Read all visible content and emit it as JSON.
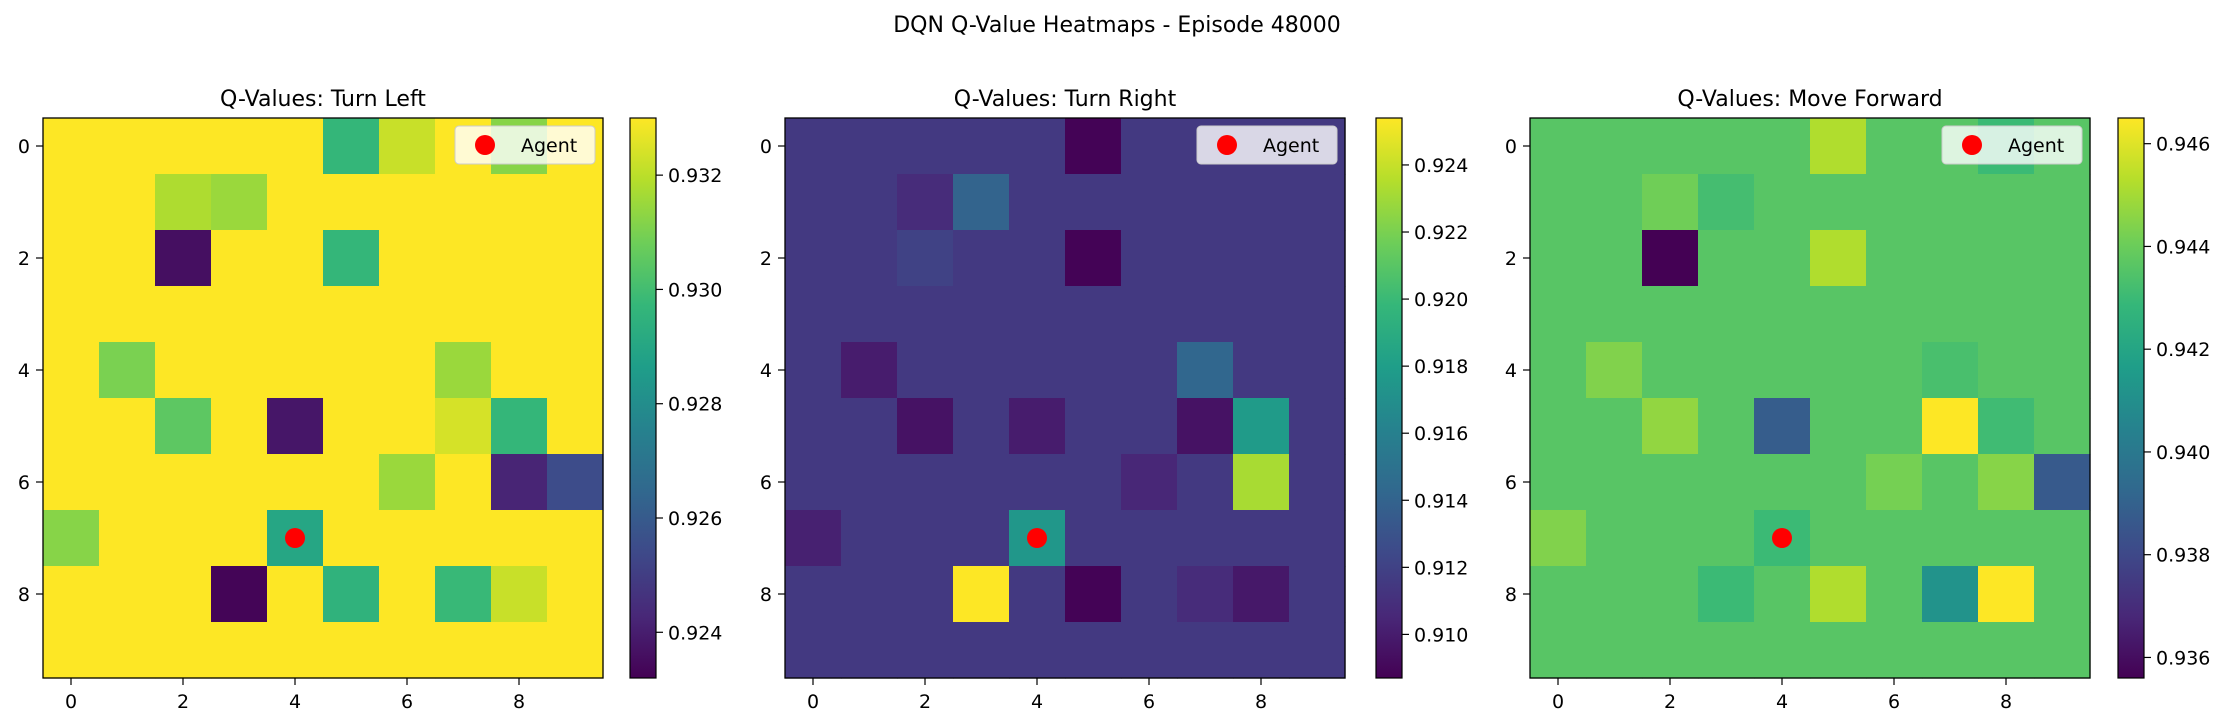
{
  "figure": {
    "suptitle": "DQN Q-Value Heatmaps - Episode 48000"
  },
  "colormap": {
    "name": "viridis",
    "stops": [
      "#440154",
      "#482878",
      "#3e4989",
      "#31688e",
      "#26828e",
      "#1f9e89",
      "#35b779",
      "#6ece58",
      "#b5de2b",
      "#fde725"
    ]
  },
  "agent": {
    "row": 7,
    "col": 4,
    "color": "#ff0000",
    "legend_label": "Agent"
  },
  "chart_data": [
    {
      "type": "heatmap",
      "title": "Q-Values: Turn Left",
      "x_ticks": [
        0,
        2,
        4,
        6,
        8
      ],
      "y_ticks": [
        0,
        2,
        4,
        6,
        8
      ],
      "vmin": 0.9232,
      "vmax": 0.933,
      "colorbar_ticks": [
        0.924,
        0.926,
        0.928,
        0.93,
        0.932
      ],
      "legend_position": "upper right",
      "values": [
        [
          0.933,
          0.933,
          0.933,
          0.933,
          0.933,
          0.9297,
          0.9322,
          0.933,
          0.9312,
          0.933
        ],
        [
          0.933,
          0.933,
          0.9318,
          0.9315,
          0.933,
          0.933,
          0.933,
          0.933,
          0.933,
          0.933
        ],
        [
          0.933,
          0.933,
          0.9236,
          0.933,
          0.933,
          0.9297,
          0.933,
          0.933,
          0.933,
          0.933
        ],
        [
          0.933,
          0.933,
          0.933,
          0.933,
          0.933,
          0.933,
          0.933,
          0.933,
          0.933,
          0.933
        ],
        [
          0.933,
          0.931,
          0.933,
          0.933,
          0.933,
          0.933,
          0.933,
          0.9315,
          0.933,
          0.933
        ],
        [
          0.933,
          0.933,
          0.9305,
          0.933,
          0.9238,
          0.933,
          0.933,
          0.9324,
          0.9297,
          0.933
        ],
        [
          0.933,
          0.933,
          0.933,
          0.933,
          0.933,
          0.933,
          0.9315,
          0.933,
          0.9242,
          0.9255
        ],
        [
          0.9312,
          0.933,
          0.933,
          0.933,
          0.929,
          0.933,
          0.933,
          0.933,
          0.933,
          0.933
        ],
        [
          0.933,
          0.933,
          0.933,
          0.9233,
          0.933,
          0.9295,
          0.933,
          0.9298,
          0.9322,
          0.933
        ],
        [
          0.933,
          0.933,
          0.933,
          0.933,
          0.933,
          0.933,
          0.933,
          0.933,
          0.933,
          0.933
        ]
      ]
    },
    {
      "type": "heatmap",
      "title": "Q-Values: Turn Right",
      "x_ticks": [
        0,
        2,
        4,
        6,
        8
      ],
      "y_ticks": [
        0,
        2,
        4,
        6,
        8
      ],
      "vmin": 0.9087,
      "vmax": 0.9254,
      "colorbar_ticks": [
        0.91,
        0.912,
        0.914,
        0.916,
        0.918,
        0.92,
        0.922,
        0.924
      ],
      "legend_position": "upper right",
      "values": [
        [
          0.9115,
          0.9115,
          0.9115,
          0.9115,
          0.9115,
          0.9088,
          0.9115,
          0.9115,
          0.9115,
          0.9115
        ],
        [
          0.9115,
          0.9115,
          0.9108,
          0.914,
          0.9115,
          0.9115,
          0.9115,
          0.9115,
          0.9115,
          0.9115
        ],
        [
          0.9115,
          0.9115,
          0.912,
          0.9115,
          0.9115,
          0.9088,
          0.9115,
          0.9115,
          0.9115,
          0.9115
        ],
        [
          0.9115,
          0.9115,
          0.9115,
          0.9115,
          0.9115,
          0.9115,
          0.9115,
          0.9115,
          0.9115,
          0.9115
        ],
        [
          0.9115,
          0.91,
          0.9115,
          0.9115,
          0.9115,
          0.9115,
          0.9115,
          0.9142,
          0.9115,
          0.9115
        ],
        [
          0.9115,
          0.9115,
          0.9095,
          0.9115,
          0.91,
          0.9115,
          0.9115,
          0.9095,
          0.9178,
          0.9115
        ],
        [
          0.9115,
          0.9115,
          0.9115,
          0.9115,
          0.9115,
          0.9115,
          0.9105,
          0.9115,
          0.9232,
          0.9115
        ],
        [
          0.9102,
          0.9115,
          0.9115,
          0.9115,
          0.9175,
          0.9115,
          0.9115,
          0.9115,
          0.9115,
          0.9115
        ],
        [
          0.9115,
          0.9115,
          0.9115,
          0.9254,
          0.9115,
          0.9088,
          0.9115,
          0.9108,
          0.9098,
          0.9115
        ],
        [
          0.9115,
          0.9115,
          0.9115,
          0.9115,
          0.9115,
          0.9115,
          0.9115,
          0.9115,
          0.9115,
          0.9115
        ]
      ]
    },
    {
      "type": "heatmap",
      "title": "Q-Values: Move Forward",
      "x_ticks": [
        0,
        2,
        4,
        6,
        8
      ],
      "y_ticks": [
        0,
        2,
        4,
        6,
        8
      ],
      "vmin": 0.9356,
      "vmax": 0.9465,
      "colorbar_ticks": [
        0.936,
        0.938,
        0.94,
        0.942,
        0.944,
        0.946
      ],
      "legend_position": "upper right",
      "values": [
        [
          0.9436,
          0.9436,
          0.9436,
          0.9436,
          0.9436,
          0.9452,
          0.9436,
          0.9436,
          0.943,
          0.9436
        ],
        [
          0.9436,
          0.9436,
          0.9441,
          0.9432,
          0.9436,
          0.9436,
          0.9436,
          0.9436,
          0.9436,
          0.9436
        ],
        [
          0.9436,
          0.9436,
          0.9356,
          0.9436,
          0.9436,
          0.9452,
          0.9436,
          0.9436,
          0.9436,
          0.9436
        ],
        [
          0.9436,
          0.9436,
          0.9436,
          0.9436,
          0.9436,
          0.9436,
          0.9436,
          0.9436,
          0.9436,
          0.9436
        ],
        [
          0.9436,
          0.9444,
          0.9436,
          0.9436,
          0.9436,
          0.9436,
          0.9436,
          0.9433,
          0.9436,
          0.9436
        ],
        [
          0.9436,
          0.9436,
          0.9447,
          0.9436,
          0.9388,
          0.9436,
          0.9436,
          0.9465,
          0.9431,
          0.9436
        ],
        [
          0.9436,
          0.9436,
          0.9436,
          0.9436,
          0.9436,
          0.9436,
          0.9442,
          0.9436,
          0.9445,
          0.9387
        ],
        [
          0.9444,
          0.9436,
          0.9436,
          0.9436,
          0.943,
          0.9436,
          0.9436,
          0.9436,
          0.9436,
          0.9436
        ],
        [
          0.9436,
          0.9436,
          0.9436,
          0.943,
          0.9436,
          0.9452,
          0.9436,
          0.9412,
          0.9465,
          0.9436
        ],
        [
          0.9436,
          0.9436,
          0.9436,
          0.9436,
          0.9436,
          0.9436,
          0.9436,
          0.9436,
          0.9436,
          0.9436
        ]
      ]
    }
  ]
}
